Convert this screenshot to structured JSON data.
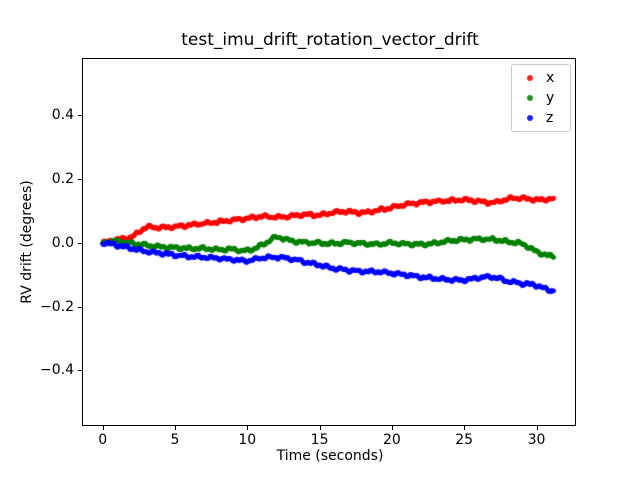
{
  "chart_data": {
    "type": "scatter",
    "title": "test_imu_drift_rotation_vector_drift",
    "xlabel": "Time (seconds)",
    "ylabel": "RV drift (degrees)",
    "xlim": [
      -1.5,
      32.8
    ],
    "ylim": [
      -0.575,
      0.575
    ],
    "xticks": [
      0,
      5,
      10,
      15,
      20,
      25,
      30
    ],
    "yticks": [
      -0.4,
      -0.2,
      0.0,
      0.2,
      0.4
    ],
    "grid": false,
    "legend_position": "upper right",
    "x_seconds": [
      0,
      1,
      2,
      3,
      4,
      5,
      6,
      7,
      8,
      9,
      10,
      11,
      12,
      13,
      14,
      15,
      16,
      17,
      18,
      19,
      20,
      21,
      22,
      23,
      24,
      25,
      26,
      27,
      28,
      29,
      30,
      31
    ],
    "t_end": 31.2,
    "series": [
      {
        "name": "x",
        "color": "#ff0000",
        "values": [
          0.0,
          0.01,
          0.018,
          0.048,
          0.047,
          0.05,
          0.055,
          0.06,
          0.065,
          0.071,
          0.076,
          0.082,
          0.08,
          0.083,
          0.088,
          0.086,
          0.095,
          0.097,
          0.094,
          0.101,
          0.11,
          0.12,
          0.125,
          0.129,
          0.132,
          0.134,
          0.13,
          0.125,
          0.137,
          0.139,
          0.134,
          0.137
        ]
      },
      {
        "name": "y",
        "color": "#008000",
        "values": [
          0.0,
          0.004,
          -0.002,
          -0.008,
          -0.013,
          -0.016,
          -0.018,
          -0.018,
          -0.022,
          -0.021,
          -0.025,
          -0.008,
          0.017,
          0.006,
          0.001,
          -0.001,
          -0.003,
          0.0,
          -0.003,
          -0.005,
          -0.001,
          -0.004,
          -0.005,
          -0.002,
          0.006,
          0.009,
          0.011,
          0.01,
          0.003,
          -0.004,
          -0.028,
          -0.042
        ]
      },
      {
        "name": "z",
        "color": "#0000ff",
        "values": [
          0.0,
          -0.008,
          -0.018,
          -0.028,
          -0.033,
          -0.039,
          -0.043,
          -0.046,
          -0.049,
          -0.053,
          -0.057,
          -0.048,
          -0.046,
          -0.051,
          -0.061,
          -0.07,
          -0.081,
          -0.086,
          -0.09,
          -0.091,
          -0.096,
          -0.101,
          -0.108,
          -0.112,
          -0.116,
          -0.117,
          -0.11,
          -0.108,
          -0.121,
          -0.128,
          -0.134,
          -0.15
        ]
      }
    ]
  },
  "figure": {
    "background": "#ffffff",
    "frame_color": "#000000",
    "legend_border_color": "#cccccc"
  }
}
